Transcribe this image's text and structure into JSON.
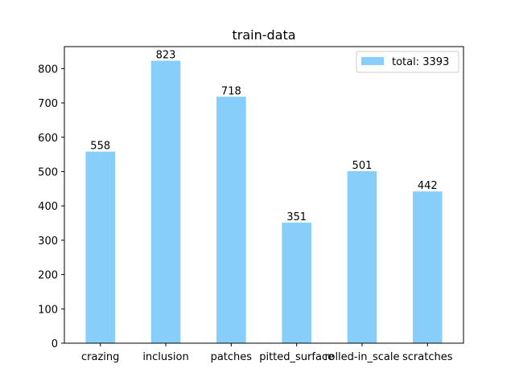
{
  "chart_data": {
    "type": "bar",
    "title": "train-data",
    "xlabel": "",
    "ylabel": "",
    "categories": [
      "crazing",
      "inclusion",
      "patches",
      "pitted_surface",
      "rolled-in_scale",
      "scratches"
    ],
    "values": [
      558,
      823,
      718,
      351,
      501,
      442
    ],
    "series": [
      {
        "name": "total: 3393",
        "values": [
          558,
          823,
          718,
          351,
          501,
          442
        ],
        "color": "#87CEFA"
      }
    ],
    "ylim": [
      0,
      864
    ],
    "yticks": [
      0,
      100,
      200,
      300,
      400,
      500,
      600,
      700,
      800
    ],
    "grid": false,
    "legend_position": "top-right"
  }
}
